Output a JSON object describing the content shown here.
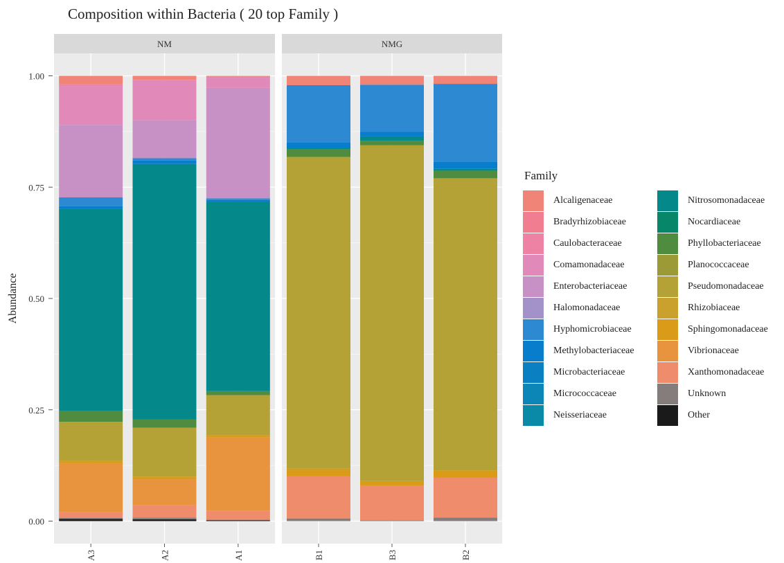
{
  "chart_data": {
    "type": "bar",
    "title": "Composition within Bacteria ( 20 top Family )",
    "ylabel": "Abundance",
    "xlabel": "",
    "ylim": [
      0,
      1
    ],
    "yticks": [
      "0.00",
      "0.25",
      "0.50",
      "0.75",
      "1.00"
    ],
    "legend_title": "Family",
    "legend_position": "right",
    "stacked": true,
    "facets": [
      {
        "name": "NM",
        "categories": [
          "A3",
          "A2",
          "A1"
        ]
      },
      {
        "name": "NMG",
        "categories": [
          "B1",
          "B3",
          "B2"
        ]
      }
    ],
    "series": [
      {
        "name": "Other",
        "color": "#1a1a1a",
        "values": [
          0.005,
          0.004,
          0.002,
          0.0,
          0.0,
          0.0
        ]
      },
      {
        "name": "Unknown",
        "color": "#857d7b",
        "values": [
          0.002,
          0.004,
          0.001,
          0.006,
          0.002,
          0.008
        ]
      },
      {
        "name": "Xanthomonadaceae",
        "color": "#ee8c6c",
        "values": [
          0.013,
          0.028,
          0.02,
          0.095,
          0.077,
          0.09
        ]
      },
      {
        "name": "Vibrionaceae",
        "color": "#e8943f",
        "values": [
          0.11,
          0.058,
          0.165,
          0.0,
          0.0,
          0.0
        ]
      },
      {
        "name": "Sphingomonadaceae",
        "color": "#d99b18",
        "values": [
          0.005,
          0.006,
          0.005,
          0.017,
          0.011,
          0.015
        ]
      },
      {
        "name": "Rhizobiaceae",
        "color": "#c9a12c",
        "values": [
          0.0,
          0.0,
          0.0,
          0.0,
          0.0,
          0.0
        ]
      },
      {
        "name": "Pseudomonadaceae",
        "color": "#b5a236",
        "values": [
          0.088,
          0.11,
          0.09,
          0.7,
          0.754,
          0.657
        ]
      },
      {
        "name": "Planococcaceae",
        "color": "#9c9a37",
        "values": [
          0.0,
          0.0,
          0.0,
          0.0,
          0.0,
          0.0
        ]
      },
      {
        "name": "Phyllobacteriaceae",
        "color": "#4f8c3f",
        "values": [
          0.024,
          0.018,
          0.009,
          0.017,
          0.01,
          0.017
        ]
      },
      {
        "name": "Nocardiaceae",
        "color": "#078669",
        "values": [
          0.0,
          0.0,
          0.0,
          0.0,
          0.0,
          0.0
        ]
      },
      {
        "name": "Nitrosomonadaceae",
        "color": "#05888a",
        "values": [
          0.455,
          0.574,
          0.425,
          0.004,
          0.01,
          0.005
        ]
      },
      {
        "name": "Neisseriaceae",
        "color": "#0a8aa6",
        "values": [
          0.0,
          0.0,
          0.0,
          0.0,
          0.0,
          0.0
        ]
      },
      {
        "name": "Micrococcaceae",
        "color": "#0b86b6",
        "values": [
          0.0,
          0.0,
          0.0,
          0.0,
          0.0,
          0.0
        ]
      },
      {
        "name": "Microbacteriaceae",
        "color": "#0a80c2",
        "values": [
          0.0,
          0.0,
          0.0,
          0.0,
          0.0,
          0.0
        ]
      },
      {
        "name": "Methylobacteriaceae",
        "color": "#077dcc",
        "values": [
          0.005,
          0.008,
          0.004,
          0.012,
          0.01,
          0.015
        ]
      },
      {
        "name": "Hyphomicrobiaceae",
        "color": "#2d89d2",
        "values": [
          0.02,
          0.005,
          0.004,
          0.128,
          0.106,
          0.175
        ]
      },
      {
        "name": "Halomonadaceae",
        "color": "#a391ca",
        "values": [
          0.0,
          0.0,
          0.0,
          0.0,
          0.0,
          0.0
        ]
      },
      {
        "name": "Enterobacteriaceae",
        "color": "#c791c6",
        "values": [
          0.163,
          0.085,
          0.248,
          0.0,
          0.0,
          0.0
        ]
      },
      {
        "name": "Comamonadaceae",
        "color": "#e189b9",
        "values": [
          0.089,
          0.09,
          0.023,
          0.0,
          0.0,
          0.0
        ]
      },
      {
        "name": "Caulobacteraceae",
        "color": "#ee82a4",
        "values": [
          0.003,
          0.001,
          0.002,
          0.0,
          0.0,
          0.0
        ]
      },
      {
        "name": "Bradyrhizobiaceae",
        "color": "#f07e90",
        "values": [
          0.0,
          0.0,
          0.0,
          0.0,
          0.0,
          0.0
        ]
      },
      {
        "name": "Alcaligenaceae",
        "color": "#ef8477",
        "values": [
          0.018,
          0.009,
          0.002,
          0.021,
          0.02,
          0.018
        ]
      }
    ],
    "legend_order": [
      "Alcaligenaceae",
      "Bradyrhizobiaceae",
      "Caulobacteraceae",
      "Comamonadaceae",
      "Enterobacteriaceae",
      "Halomonadaceae",
      "Hyphomicrobiaceae",
      "Methylobacteriaceae",
      "Microbacteriaceae",
      "Micrococcaceae",
      "Neisseriaceae",
      "Nitrosomonadaceae",
      "Nocardiaceae",
      "Phyllobacteriaceae",
      "Planococcaceae",
      "Pseudomonadaceae",
      "Rhizobiaceae",
      "Sphingomonadaceae",
      "Vibrionaceae",
      "Xanthomonadaceae",
      "Unknown",
      "Other"
    ],
    "colors": {
      "panel_bg": "#ebebeb",
      "strip_bg": "#d9d9d9",
      "grid": "#ffffff"
    }
  }
}
